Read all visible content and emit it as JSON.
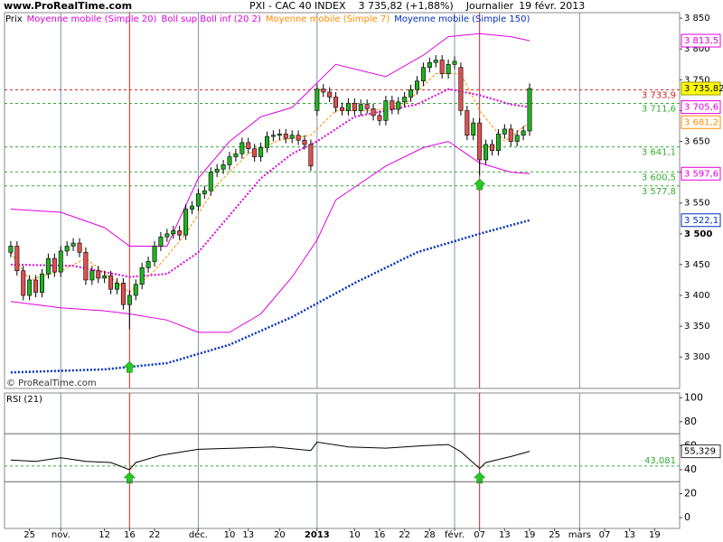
{
  "header": {
    "site": "www.ProRealTime.com",
    "symbol": "PXI - CAC 40 INDEX",
    "quote": "3 735,82 (+1,88%)",
    "period": "Journalier",
    "date": "19 févr. 2013",
    "copyright": "© ProRealTime.com"
  },
  "chart_data": [
    {
      "type": "candlestick",
      "xlim": [
        -1,
        107
      ],
      "ylim": [
        3249,
        3859
      ],
      "yticks": [
        {
          "value": 3300,
          "label": "3 300"
        },
        {
          "value": 3350,
          "label": "3 350"
        },
        {
          "value": 3400,
          "label": "3 400"
        },
        {
          "value": 3450,
          "label": "3 450"
        },
        {
          "value": 3500,
          "label": "3 500",
          "bold": true
        },
        {
          "value": 3550,
          "label": "3 550"
        },
        {
          "value": 3600,
          "label": "3 600"
        },
        {
          "value": 3650,
          "label": "3 650"
        },
        {
          "value": 3700,
          "label": "3 700"
        },
        {
          "value": 3750,
          "label": "3 750"
        },
        {
          "value": 3800,
          "label": "3 800"
        },
        {
          "value": 3850,
          "label": "3 850"
        }
      ],
      "xticks": [
        {
          "value": 3,
          "label": "25"
        },
        {
          "value": 8,
          "label": "nov.",
          "grid": true
        },
        {
          "value": 15,
          "label": "12"
        },
        {
          "value": 19,
          "label": "16"
        },
        {
          "value": 23,
          "label": "22"
        },
        {
          "value": 30,
          "label": "déc.",
          "grid": true
        },
        {
          "value": 35,
          "label": "10"
        },
        {
          "value": 38,
          "label": "13"
        },
        {
          "value": 43,
          "label": "20"
        },
        {
          "value": 49,
          "label": "2013",
          "grid": true,
          "bold": true
        },
        {
          "value": 55,
          "label": "10"
        },
        {
          "value": 59,
          "label": "16"
        },
        {
          "value": 63,
          "label": "22"
        },
        {
          "value": 67,
          "label": "28"
        },
        {
          "value": 71,
          "label": "févr.",
          "grid": true
        },
        {
          "value": 75,
          "label": "07"
        },
        {
          "value": 79,
          "label": "13"
        },
        {
          "value": 83,
          "label": "19"
        },
        {
          "value": 87,
          "label": "25"
        },
        {
          "value": 91,
          "label": "mars",
          "grid": true
        },
        {
          "value": 95,
          "label": "07"
        },
        {
          "value": 99,
          "label": "13"
        },
        {
          "value": 103,
          "label": "19"
        }
      ],
      "candles": {
        "name": "Prix",
        "color": "#000000",
        "up_color": "#22b022",
        "down_color": "#e05050",
        "last_label": "3 735,82",
        "label_bg": "#ffff00",
        "x": [
          0,
          1,
          2,
          3,
          4,
          5,
          6,
          7,
          8,
          9,
          10,
          11,
          12,
          13,
          14,
          15,
          16,
          17,
          18,
          19,
          20,
          21,
          22,
          23,
          24,
          25,
          26,
          27,
          28,
          29,
          30,
          31,
          32,
          33,
          34,
          35,
          36,
          37,
          38,
          39,
          40,
          41,
          42,
          43,
          44,
          45,
          46,
          47,
          48,
          49,
          50,
          51,
          52,
          53,
          54,
          55,
          56,
          57,
          58,
          59,
          60,
          61,
          62,
          63,
          64,
          65,
          66,
          67,
          68,
          69,
          70,
          71,
          72,
          73,
          74,
          75,
          76,
          77,
          78,
          79,
          80,
          81,
          82,
          83
        ],
        "open": [
          3470,
          3480,
          3440,
          3400,
          3425,
          3405,
          3435,
          3460,
          3438,
          3472,
          3480,
          3485,
          3470,
          3425,
          3440,
          3428,
          3432,
          3410,
          3420,
          3385,
          3400,
          3418,
          3445,
          3455,
          3480,
          3495,
          3500,
          3505,
          3498,
          3540,
          3545,
          3565,
          3570,
          3600,
          3605,
          3612,
          3625,
          3630,
          3648,
          3638,
          3625,
          3640,
          3658,
          3660,
          3662,
          3655,
          3660,
          3652,
          3645,
          3700,
          3735,
          3730,
          3722,
          3705,
          3700,
          3712,
          3700,
          3710,
          3703,
          3692,
          3684,
          3716,
          3702,
          3714,
          3722,
          3734,
          3748,
          3770,
          3778,
          3782,
          3760,
          3775,
          3770,
          3700,
          3660,
          3680,
          3620,
          3645,
          3635,
          3662,
          3670,
          3650,
          3660,
          3667
        ],
        "high": [
          3488,
          3488,
          3448,
          3433,
          3433,
          3443,
          3468,
          3468,
          3480,
          3488,
          3493,
          3493,
          3478,
          3448,
          3448,
          3440,
          3440,
          3428,
          3428,
          3408,
          3426,
          3453,
          3463,
          3488,
          3503,
          3508,
          3513,
          3513,
          3548,
          3553,
          3573,
          3578,
          3608,
          3613,
          3620,
          3633,
          3638,
          3656,
          3656,
          3646,
          3648,
          3666,
          3668,
          3670,
          3670,
          3668,
          3668,
          3660,
          3653,
          3743,
          3743,
          3738,
          3730,
          3713,
          3720,
          3720,
          3718,
          3718,
          3711,
          3700,
          3724,
          3724,
          3722,
          3730,
          3742,
          3756,
          3778,
          3786,
          3790,
          3790,
          3783,
          3788,
          3778,
          3708,
          3688,
          3688,
          3653,
          3653,
          3670,
          3678,
          3678,
          3668,
          3675,
          3744
        ],
        "low": [
          3462,
          3432,
          3392,
          3392,
          3397,
          3397,
          3427,
          3430,
          3430,
          3464,
          3472,
          3462,
          3417,
          3417,
          3420,
          3420,
          3402,
          3402,
          3377,
          3345,
          3392,
          3410,
          3437,
          3447,
          3472,
          3487,
          3492,
          3490,
          3490,
          3532,
          3537,
          3557,
          3562,
          3592,
          3597,
          3604,
          3617,
          3622,
          3630,
          3617,
          3617,
          3632,
          3650,
          3652,
          3647,
          3647,
          3644,
          3637,
          3602,
          3692,
          3722,
          3714,
          3697,
          3692,
          3692,
          3692,
          3692,
          3695,
          3684,
          3676,
          3676,
          3694,
          3694,
          3706,
          3714,
          3726,
          3740,
          3762,
          3770,
          3752,
          3752,
          3767,
          3692,
          3652,
          3652,
          3595,
          3612,
          3627,
          3627,
          3654,
          3642,
          3642,
          3652,
          3659
        ],
        "close": [
          3480,
          3440,
          3400,
          3425,
          3405,
          3435,
          3460,
          3438,
          3472,
          3480,
          3485,
          3470,
          3425,
          3440,
          3428,
          3432,
          3410,
          3420,
          3385,
          3400,
          3418,
          3445,
          3455,
          3480,
          3495,
          3500,
          3505,
          3498,
          3540,
          3545,
          3565,
          3570,
          3600,
          3605,
          3612,
          3625,
          3630,
          3648,
          3638,
          3625,
          3640,
          3658,
          3660,
          3662,
          3655,
          3660,
          3652,
          3645,
          3610,
          3735,
          3730,
          3722,
          3705,
          3700,
          3712,
          3700,
          3710,
          3703,
          3692,
          3684,
          3716,
          3702,
          3714,
          3722,
          3734,
          3748,
          3770,
          3778,
          3782,
          3760,
          3775,
          3780,
          3700,
          3660,
          3680,
          3620,
          3645,
          3635,
          3662,
          3670,
          3650,
          3660,
          3667,
          3735.82
        ]
      },
      "series": [
        {
          "name": "Moyenne mobile (Simple 20)",
          "color": "#e000e0",
          "dash": "2 2",
          "width": 2,
          "last_label": "3 705,6",
          "x": [
            0,
            10,
            19,
            25,
            30,
            35,
            40,
            45,
            49,
            55,
            60,
            65,
            70,
            75,
            80,
            83
          ],
          "values": [
            3450,
            3448,
            3430,
            3435,
            3470,
            3530,
            3590,
            3630,
            3650,
            3690,
            3700,
            3710,
            3735,
            3725,
            3710,
            3705.6
          ]
        },
        {
          "name": "Boll sup Boll inf (20 2)",
          "color": "#e000e0",
          "width": 1,
          "upper_label": "3 813,5",
          "lower_label": "3 597,6",
          "x": [
            0,
            8,
            15,
            19,
            25,
            30,
            35,
            40,
            45,
            49,
            52,
            60,
            66,
            70,
            75,
            80,
            83
          ],
          "upper": [
            3540,
            3535,
            3510,
            3480,
            3480,
            3590,
            3650,
            3690,
            3705,
            3745,
            3775,
            3755,
            3790,
            3820,
            3825,
            3820,
            3813.5
          ],
          "lower": [
            3390,
            3380,
            3375,
            3370,
            3360,
            3340,
            3340,
            3370,
            3430,
            3490,
            3555,
            3610,
            3640,
            3650,
            3615,
            3600,
            3597.6
          ]
        },
        {
          "name": "Moyenne mobile (Simple 7)",
          "color": "#ff8c00",
          "dash": "3 2",
          "width": 1,
          "last_label": "3 681,2",
          "x": [
            0,
            3,
            8,
            12,
            19,
            23,
            28,
            33,
            38,
            43,
            48,
            52,
            58,
            63,
            68,
            72,
            75,
            79,
            83
          ],
          "values": [
            3470,
            3425,
            3440,
            3460,
            3405,
            3440,
            3500,
            3580,
            3630,
            3652,
            3660,
            3700,
            3700,
            3710,
            3760,
            3760,
            3700,
            3650,
            3681.2
          ]
        },
        {
          "name": "Moyenne mobile (Simple 150)",
          "color": "#0030c0",
          "dash": "2 2",
          "width": 2.5,
          "last_label": "3 522,1",
          "x": [
            0,
            15,
            25,
            35,
            45,
            55,
            65,
            75,
            83
          ],
          "values": [
            3275,
            3280,
            3290,
            3320,
            3365,
            3420,
            3470,
            3500,
            3522.1
          ]
        }
      ],
      "levels": [
        {
          "value": 3733.9,
          "label": "3 733,9",
          "color": "#d02020"
        },
        {
          "value": 3711.6,
          "label": "3 711,6",
          "color": "#33aa33"
        },
        {
          "value": 3641.1,
          "label": "3 641,1",
          "color": "#33aa33"
        },
        {
          "value": 3600.5,
          "label": "3 600,5",
          "color": "#33aa33"
        },
        {
          "value": 3577.8,
          "label": "3 577,8",
          "color": "#33aa33"
        }
      ],
      "signals": [
        19,
        75
      ]
    },
    {
      "type": "line",
      "title": "RSI (21)",
      "color": "#000000",
      "last_label": "55,329",
      "xlim": [
        -1,
        107
      ],
      "ylim": [
        -9,
        104
      ],
      "yticks": [
        0,
        20,
        40,
        60,
        80,
        100
      ],
      "x": [
        0,
        4,
        8,
        12,
        16,
        19,
        20,
        24,
        30,
        36,
        42,
        48,
        49,
        54,
        60,
        66,
        70,
        72,
        75,
        76,
        80,
        83
      ],
      "values": [
        48,
        47,
        50,
        47,
        46,
        40,
        46,
        52,
        57,
        58,
        59,
        56,
        63,
        59,
        58,
        60,
        61,
        55,
        41,
        46,
        51,
        55.329
      ],
      "levels": [
        {
          "value": 70,
          "color": "#666666"
        },
        {
          "value": 30,
          "color": "#666666"
        },
        {
          "value": 43.081,
          "label": "43,081",
          "color": "#33aa33",
          "dashed": true
        }
      ]
    }
  ]
}
